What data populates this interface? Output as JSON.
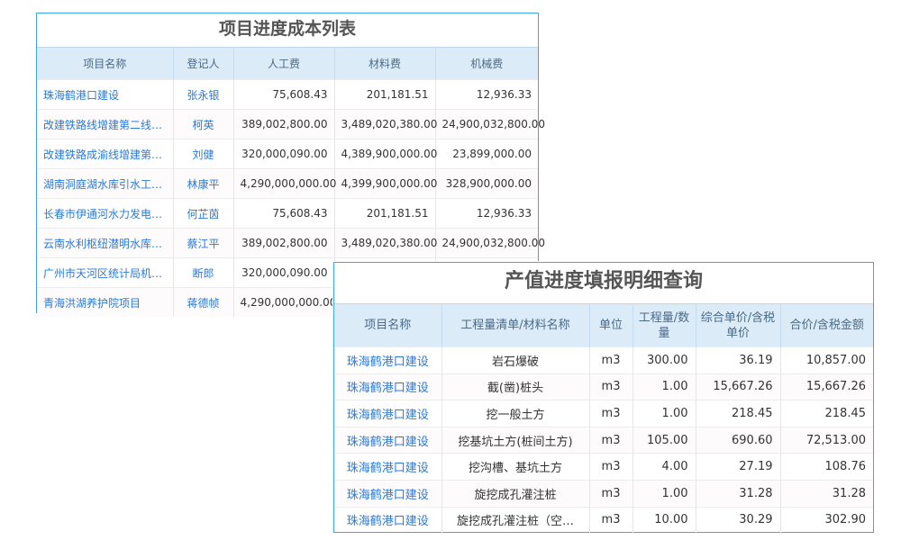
{
  "table1": {
    "title": "项目进度成本列表",
    "headers": [
      "项目名称",
      "登记人",
      "人工费",
      "材料费",
      "机械费"
    ],
    "rows": [
      [
        "珠海鹤港口建设",
        "张永银",
        "75,608.43",
        "201,181.51",
        "12,936.33"
      ],
      [
        "改建铁路线增建第二线…",
        "柯英",
        "389,002,800.00",
        "3,489,020,380.00",
        "24,900,032,800.00"
      ],
      [
        "改建铁路成渝线增建第…",
        "刘健",
        "320,000,090.00",
        "4,389,900,000.00",
        "23,899,000.00"
      ],
      [
        "湖南洞庭湖水库引水工…",
        "林康平",
        "4,290,000,000.00",
        "4,399,900,000.00",
        "328,900,000.00"
      ],
      [
        "长春市伊通河水力发电…",
        "何芷茵",
        "75,608.43",
        "201,181.51",
        "12,936.33"
      ],
      [
        "云南水利枢纽潜明水库…",
        "蔡江平",
        "389,002,800.00",
        "3,489,020,380.00",
        "24,900,032,800.00"
      ],
      [
        "广州市天河区统计局机…",
        "断郎",
        "320,000,090.00",
        "",
        ""
      ],
      [
        "青海洪湖养护院项目",
        "蒋德帧",
        "4,290,000,000.00",
        "",
        ""
      ]
    ]
  },
  "table2": {
    "title": "产值进度填报明细查询",
    "headers": [
      "项目名称",
      "工程量清单/材料名称",
      "单位",
      "工程量/数量",
      "综合单价/含税单价",
      "合价/含税金额"
    ],
    "rows": [
      [
        "珠海鹤港口建设",
        "岩石爆破",
        "m3",
        "300.00",
        "36.19",
        "10,857.00"
      ],
      [
        "珠海鹤港口建设",
        "截(凿)桩头",
        "m3",
        "1.00",
        "15,667.26",
        "15,667.26"
      ],
      [
        "珠海鹤港口建设",
        "挖一般土方",
        "m3",
        "1.00",
        "218.45",
        "218.45"
      ],
      [
        "珠海鹤港口建设",
        "挖基坑土方(桩间土方)",
        "m3",
        "105.00",
        "690.60",
        "72,513.00"
      ],
      [
        "珠海鹤港口建设",
        "挖沟槽、基坑土方",
        "m3",
        "4.00",
        "27.19",
        "108.76"
      ],
      [
        "珠海鹤港口建设",
        "旋挖成孔灌注桩",
        "m3",
        "1.00",
        "31.28",
        "31.28"
      ],
      [
        "珠海鹤港口建设",
        "旋挖成孔灌注桩（空…",
        "m3",
        "10.00",
        "30.29",
        "302.90"
      ]
    ]
  },
  "colors": {
    "border": "#3aa8e8",
    "header_bg": "#dcebf8",
    "link": "#2a7ad8"
  }
}
